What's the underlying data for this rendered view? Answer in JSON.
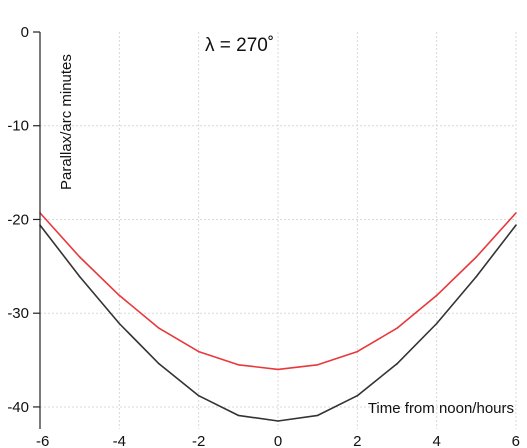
{
  "chart_data": {
    "type": "line",
    "title": "",
    "annotation": "λ = 270˚",
    "xlabel": "Time from noon/hours",
    "ylabel": "Parallax/arc minutes",
    "xlim": [
      -6,
      6
    ],
    "ylim": [
      -41.5,
      0
    ],
    "x_ticks": [
      -6,
      -4,
      -2,
      0,
      2,
      4,
      6
    ],
    "x_tick_labels": [
      "-6",
      "-4",
      "-2",
      "0",
      "2",
      "4",
      "6"
    ],
    "y_ticks": [
      0,
      -10,
      -20,
      -30,
      -40
    ],
    "y_tick_labels": [
      "0",
      "-10",
      "-20",
      "-30",
      "-40"
    ],
    "grid": true,
    "legend": "none",
    "x": [
      -6,
      -5,
      -4,
      -3,
      -2,
      -1,
      0,
      1,
      2,
      3,
      4,
      5,
      6
    ],
    "series": [
      {
        "color": "#e8383b",
        "values": [
          -19.3,
          -24.0,
          -28.1,
          -31.6,
          -34.1,
          -35.5,
          -36.0,
          -35.5,
          -34.1,
          -31.6,
          -28.1,
          -24.0,
          -19.3
        ]
      },
      {
        "color": "#333333",
        "values": [
          -20.6,
          -26.1,
          -31.1,
          -35.4,
          -38.8,
          -40.9,
          -41.5,
          -40.9,
          -38.8,
          -35.4,
          -31.1,
          -26.1,
          -20.6
        ]
      }
    ]
  }
}
